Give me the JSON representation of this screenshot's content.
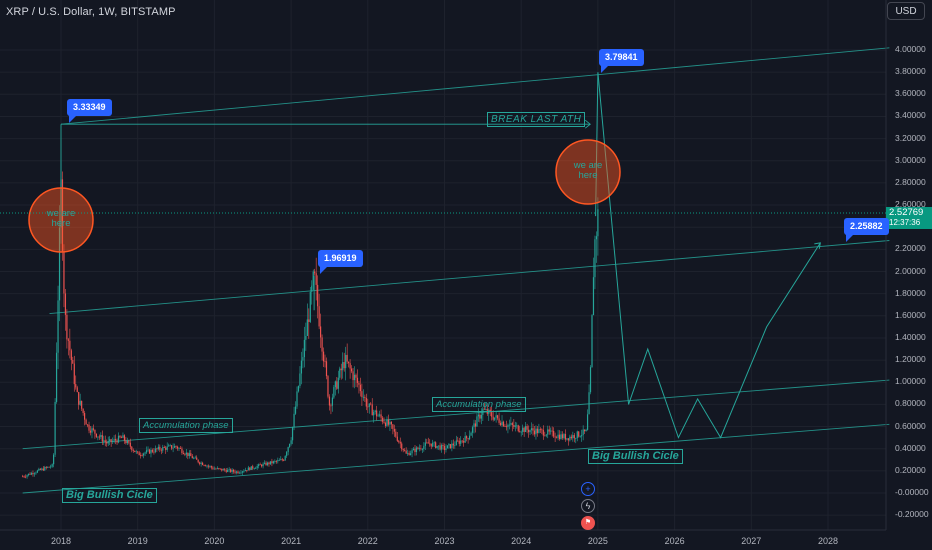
{
  "header": {
    "symbol_title": "XRP / U.S. Dollar, 1W, BITSTAMP",
    "currency_button": "USD"
  },
  "price_tag": {
    "price": "2.52769",
    "countdown": "12:37:36",
    "color": "#089981"
  },
  "annotations": {
    "callouts": [
      "3.33349",
      "1.96919",
      "3.79841",
      "2.25882"
    ],
    "circle_text": [
      "we are\nhere",
      "we are\nhere"
    ],
    "accumulation_labels": [
      "Accumulation phase",
      "Accumulation phase"
    ],
    "bullish_labels": [
      "Big Bullish Cicle",
      "Big Bullish Cicle"
    ],
    "break_label": "BREAK LAST ATH"
  },
  "toolbar": {
    "icons": [
      "plus-icon",
      "lightning-icon",
      "flag-icon"
    ]
  },
  "colors": {
    "background": "#131722",
    "up": "#26a69a",
    "down": "#ef5350",
    "accent": "#2962ff",
    "circle": "#ff5722"
  },
  "chart_data": {
    "type": "candlestick",
    "title": "XRP / U.S. Dollar, 1W, BITSTAMP",
    "ylim": [
      -0.25,
      4.3
    ],
    "y_ticks": [
      "4.00000",
      "3.80000",
      "3.60000",
      "3.40000",
      "3.20000",
      "3.00000",
      "2.80000",
      "2.60000",
      "2.40000",
      "2.20000",
      "2.00000",
      "1.80000",
      "1.60000",
      "1.40000",
      "1.20000",
      "1.00000",
      "0.80000",
      "0.60000",
      "0.40000",
      "0.20000",
      "-0.00000",
      "-0.20000"
    ],
    "x_ticks": [
      "2018",
      "2019",
      "2020",
      "2021",
      "2022",
      "2023",
      "2024",
      "2025",
      "2026",
      "2027",
      "2028"
    ],
    "price_path": [
      [
        2017.5,
        0.15
      ],
      [
        2017.9,
        0.25
      ],
      [
        2018.0,
        2.75
      ],
      [
        2018.05,
        1.6
      ],
      [
        2018.2,
        0.9
      ],
      [
        2018.35,
        0.6
      ],
      [
        2018.6,
        0.45
      ],
      [
        2018.8,
        0.5
      ],
      [
        2019.0,
        0.35
      ],
      [
        2019.3,
        0.4
      ],
      [
        2019.5,
        0.42
      ],
      [
        2019.8,
        0.28
      ],
      [
        2020.0,
        0.22
      ],
      [
        2020.3,
        0.19
      ],
      [
        2020.6,
        0.25
      ],
      [
        2020.9,
        0.3
      ],
      [
        2021.0,
        0.5
      ],
      [
        2021.3,
        1.96
      ],
      [
        2021.5,
        0.8
      ],
      [
        2021.7,
        1.2
      ],
      [
        2021.9,
        0.95
      ],
      [
        2022.0,
        0.78
      ],
      [
        2022.3,
        0.6
      ],
      [
        2022.5,
        0.35
      ],
      [
        2022.8,
        0.45
      ],
      [
        2023.0,
        0.4
      ],
      [
        2023.3,
        0.5
      ],
      [
        2023.5,
        0.75
      ],
      [
        2023.8,
        0.62
      ],
      [
        2024.0,
        0.58
      ],
      [
        2024.3,
        0.55
      ],
      [
        2024.6,
        0.5
      ],
      [
        2024.85,
        0.55
      ],
      [
        2024.9,
        1.0
      ],
      [
        2024.95,
        2.2
      ],
      [
        2025.0,
        2.5
      ]
    ],
    "projection_path": [
      [
        2025.0,
        3.79841
      ],
      [
        2025.4,
        0.8
      ],
      [
        2025.65,
        1.3
      ],
      [
        2026.05,
        0.5
      ],
      [
        2026.3,
        0.85
      ],
      [
        2026.6,
        0.5
      ],
      [
        2027.2,
        1.5
      ],
      [
        2027.9,
        2.25882
      ]
    ],
    "channel_lines": [
      {
        "from": [
          2018.0,
          3.33
        ],
        "to": [
          2028.8,
          4.02
        ]
      },
      {
        "from": [
          2017.85,
          1.62
        ],
        "to": [
          2028.8,
          2.28
        ]
      },
      {
        "from": [
          2017.5,
          0.4
        ],
        "to": [
          2028.8,
          1.02
        ]
      },
      {
        "from": [
          2017.5,
          0.0
        ],
        "to": [
          2028.8,
          0.62
        ]
      }
    ],
    "ath_arrow": {
      "from": [
        2018.0,
        3.33
      ],
      "to": [
        2024.9,
        3.33
      ]
    }
  }
}
